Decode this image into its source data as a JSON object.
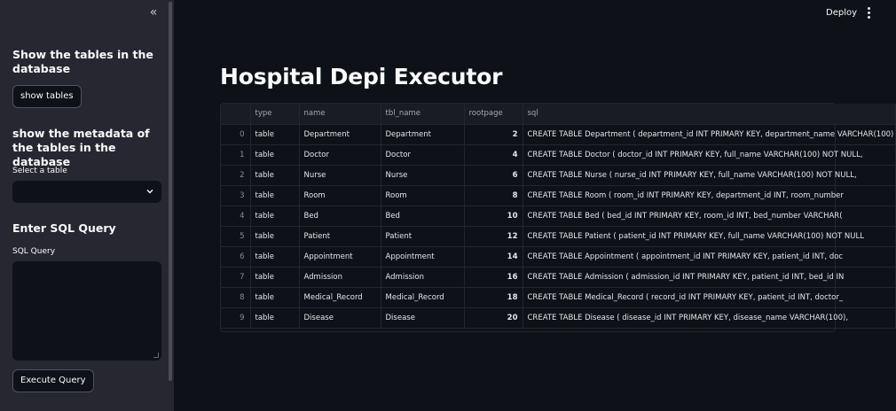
{
  "sidebar": {
    "section1_heading": "Show the tables in the database",
    "show_tables_button": "show tables",
    "section2_heading": "show the metadata of the tables in the database",
    "select_label": "Select a table",
    "select_value": "",
    "section3_heading": "Enter SQL Query",
    "sql_label": "SQL Query",
    "sql_value": "",
    "execute_button": "Execute Query"
  },
  "header": {
    "deploy_label": "Deploy"
  },
  "main": {
    "title": "Hospital Depi Executor"
  },
  "table": {
    "columns": [
      "",
      "type",
      "name",
      "tbl_name",
      "rootpage",
      "sql"
    ],
    "rows": [
      [
        "0",
        "table",
        "Department",
        "Department",
        "2",
        "CREATE TABLE Department (    department_id INT PRIMARY KEY,    department_name VARCHAR(100)"
      ],
      [
        "1",
        "table",
        "Doctor",
        "Doctor",
        "4",
        "CREATE TABLE Doctor (    doctor_id INT PRIMARY KEY,    full_name VARCHAR(100) NOT NULL,"
      ],
      [
        "2",
        "table",
        "Nurse",
        "Nurse",
        "6",
        "CREATE TABLE Nurse (    nurse_id INT PRIMARY KEY,    full_name VARCHAR(100) NOT NULL,"
      ],
      [
        "3",
        "table",
        "Room",
        "Room",
        "8",
        "CREATE TABLE Room (    room_id INT PRIMARY KEY,    department_id INT,    room_number"
      ],
      [
        "4",
        "table",
        "Bed",
        "Bed",
        "10",
        "CREATE TABLE Bed (    bed_id INT PRIMARY KEY,    room_id INT,    bed_number VARCHAR("
      ],
      [
        "5",
        "table",
        "Patient",
        "Patient",
        "12",
        "CREATE TABLE Patient (    patient_id INT PRIMARY KEY,    full_name VARCHAR(100) NOT NULL"
      ],
      [
        "6",
        "table",
        "Appointment",
        "Appointment",
        "14",
        "CREATE TABLE Appointment (    appointment_id INT PRIMARY KEY,    patient_id INT,    doc"
      ],
      [
        "7",
        "table",
        "Admission",
        "Admission",
        "16",
        "CREATE TABLE Admission (    admission_id INT PRIMARY KEY,    patient_id INT,    bed_id IN"
      ],
      [
        "8",
        "table",
        "Medical_Record",
        "Medical_Record",
        "18",
        "CREATE TABLE Medical_Record (    record_id INT PRIMARY KEY,    patient_id INT,    doctor_"
      ],
      [
        "9",
        "table",
        "Disease",
        "Disease",
        "20",
        "CREATE TABLE Disease (    disease_id INT PRIMARY KEY,    disease_name VARCHAR(100),"
      ]
    ]
  },
  "colors": {
    "background": "#0e1117",
    "sidebar": "#262730",
    "text": "#fafafa",
    "table_header": "#1a1c23",
    "grid": "#24262e"
  },
  "icons": {
    "collapse": "double-chevron-left-icon",
    "select": "chevron-down-icon",
    "menu": "vertical-dots-icon"
  }
}
